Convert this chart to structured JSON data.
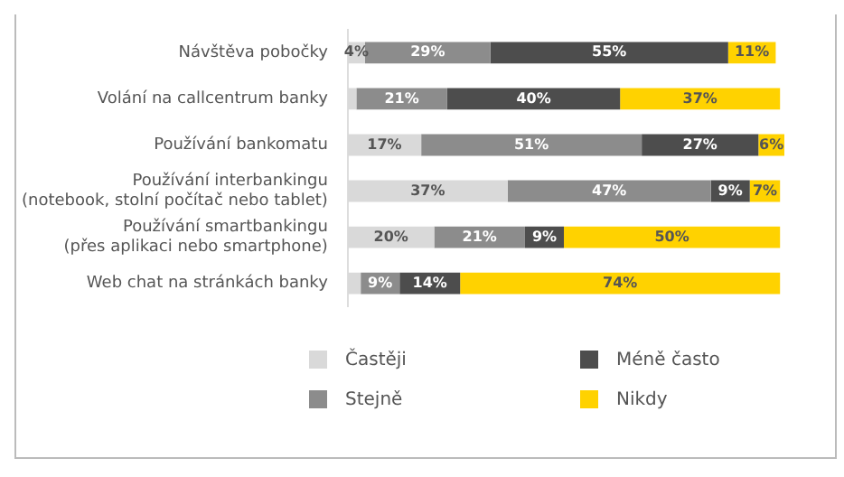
{
  "chart_data": {
    "type": "bar",
    "orientation": "horizontal",
    "stacked": true,
    "categories": [
      "Návštěva pobočky",
      "Volání na callcentrum banky",
      "Používání bankomatu",
      "Používání interbankingu\n(notebook, stolní počítač nebo tablet)",
      "Používání smartbankingu\n(přes aplikaci nebo smartphone)",
      "Web chat na stránkách banky"
    ],
    "series": [
      {
        "name": "Častěji",
        "color": "#d9d9d9",
        "values": [
          4,
          2,
          17,
          37,
          20,
          3
        ],
        "value_labels": [
          "4%",
          null,
          "17%",
          "37%",
          "20%",
          null
        ]
      },
      {
        "name": "Stejně",
        "color": "#8c8c8c",
        "values": [
          29,
          21,
          51,
          47,
          21,
          9
        ],
        "value_labels": [
          "29%",
          "21%",
          "51%",
          "47%",
          "21%",
          "9%"
        ]
      },
      {
        "name": "Méně často",
        "color": "#4d4d4d",
        "values": [
          55,
          40,
          27,
          9,
          9,
          14
        ],
        "value_labels": [
          "55%",
          "40%",
          "27%",
          "9%",
          "9%",
          "14%"
        ]
      },
      {
        "name": "Nikdy",
        "color": "#ffd200",
        "values": [
          11,
          37,
          6,
          7,
          50,
          74
        ],
        "value_labels": [
          "11%",
          "37%",
          "6%",
          "7%",
          "50%",
          "74%"
        ]
      }
    ],
    "legend": "bottom"
  }
}
